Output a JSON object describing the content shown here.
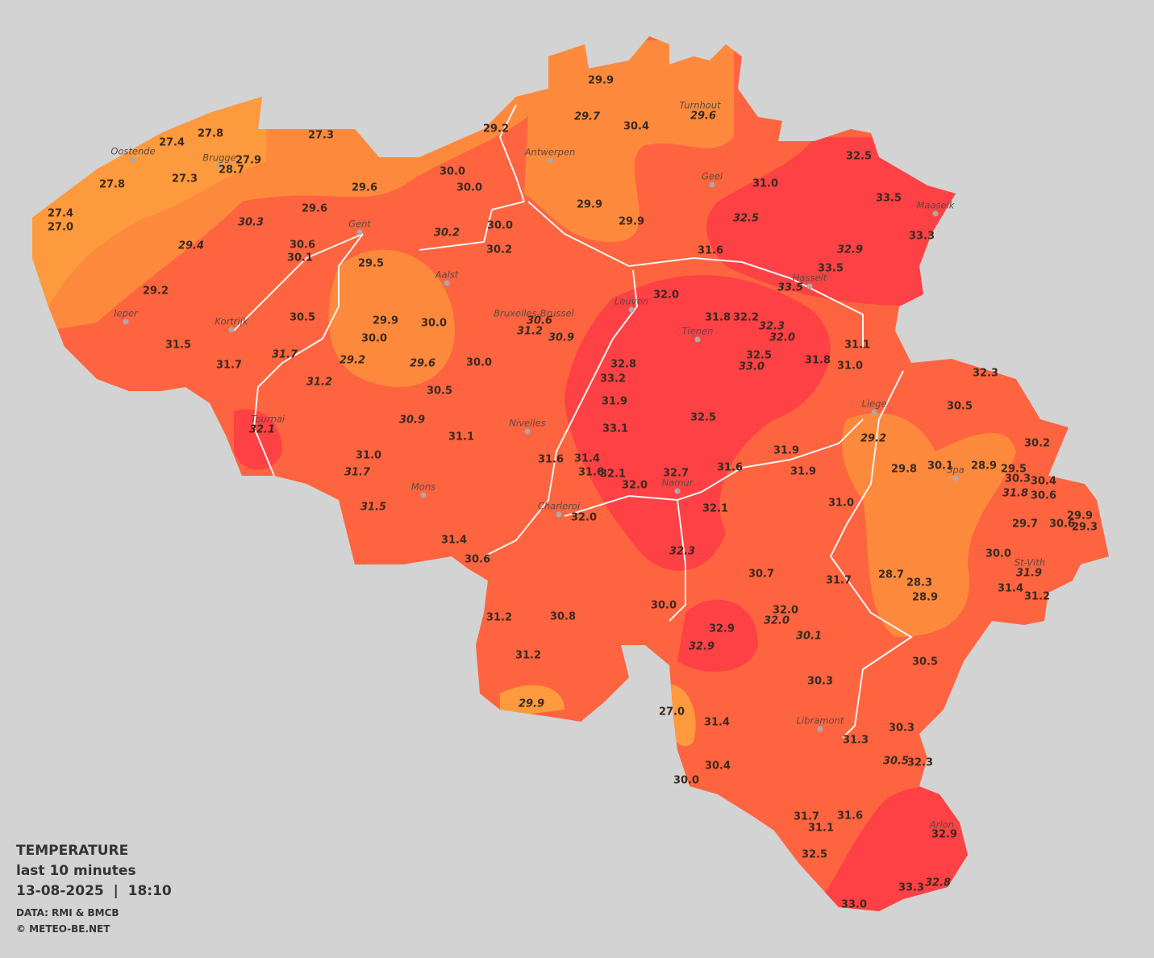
{
  "legend": {
    "title": "TEMPERATURE",
    "subtitle": "last 10 minutes",
    "timestamp": "13-08-2025  |  18:10",
    "source": "DATA: RMI & BMCB",
    "credit": "© METEO-BE.NET"
  },
  "cities": [
    "Oostende",
    "Brugge",
    "Antwerpen",
    "Turnhout",
    "Geel",
    "Maaseik",
    "Gent",
    "Aalst",
    "Hasselt",
    "Leuven",
    "Bruxelles-Brussel",
    "Ieper",
    "Kortrijk",
    "Tienen",
    "Liege",
    "Tournai",
    "Nivelles",
    "Spa",
    "Namur",
    "Mons",
    "Charleroi",
    "St-Vith",
    "Libramont",
    "Arlon"
  ],
  "readings": [
    "29.9",
    "29.7",
    "30.4",
    "29.6",
    "29.2",
    "27.3",
    "27.8",
    "27.4",
    "27.9",
    "28.7",
    "27.3",
    "27.8",
    "30.0",
    "30.0",
    "29.6",
    "31.0",
    "32.5",
    "33.5",
    "29.9",
    "29.9",
    "32.5",
    "33.3",
    "27.4",
    "27.0",
    "29.6",
    "30.3",
    "30.2",
    "30.0",
    "30.2",
    "31.6",
    "32.9",
    "33.5",
    "33.5",
    "29.4",
    "30.6",
    "30.1",
    "29.5",
    "29.2",
    "32.0",
    "31.8",
    "32.2",
    "32.3",
    "32.0",
    "30.5",
    "29.9",
    "30.0",
    "30.0",
    "30.6",
    "31.2",
    "30.9",
    "31.5",
    "31.7",
    "31.7",
    "29.2",
    "29.6",
    "30.0",
    "32.8",
    "32.5",
    "33.0",
    "31.8",
    "31.1",
    "31.0",
    "33.2",
    "31.2",
    "30.5",
    "31.9",
    "32.3",
    "30.5",
    "30.9",
    "33.1",
    "32.5",
    "32.1",
    "31.1",
    "29.2",
    "30.2",
    "31.0",
    "31.9",
    "31.6",
    "31.4",
    "31.7",
    "31.6",
    "31.9",
    "29.8",
    "30.1",
    "28.9",
    "29.5",
    "31.6",
    "32.1",
    "32.7",
    "30.3",
    "30.4",
    "32.0",
    "31.8",
    "30.6",
    "31.5",
    "32.1",
    "31.0",
    "32.0",
    "29.7",
    "30.6",
    "29.9",
    "29.3",
    "31.4",
    "32.3",
    "30.6",
    "30.0",
    "30.7",
    "28.7",
    "31.9",
    "31.7",
    "28.3",
    "31.4",
    "31.2",
    "28.9",
    "30.0",
    "32.0",
    "32.0",
    "31.2",
    "30.8",
    "32.9",
    "30.1",
    "32.9",
    "31.2",
    "30.5",
    "30.3",
    "29.9",
    "27.0",
    "31.4",
    "30.3",
    "31.3",
    "30.5",
    "32.3",
    "30.4",
    "30.0",
    "31.7",
    "31.6",
    "31.1",
    "32.9",
    "32.5",
    "33.3",
    "32.8",
    "33.0"
  ]
}
